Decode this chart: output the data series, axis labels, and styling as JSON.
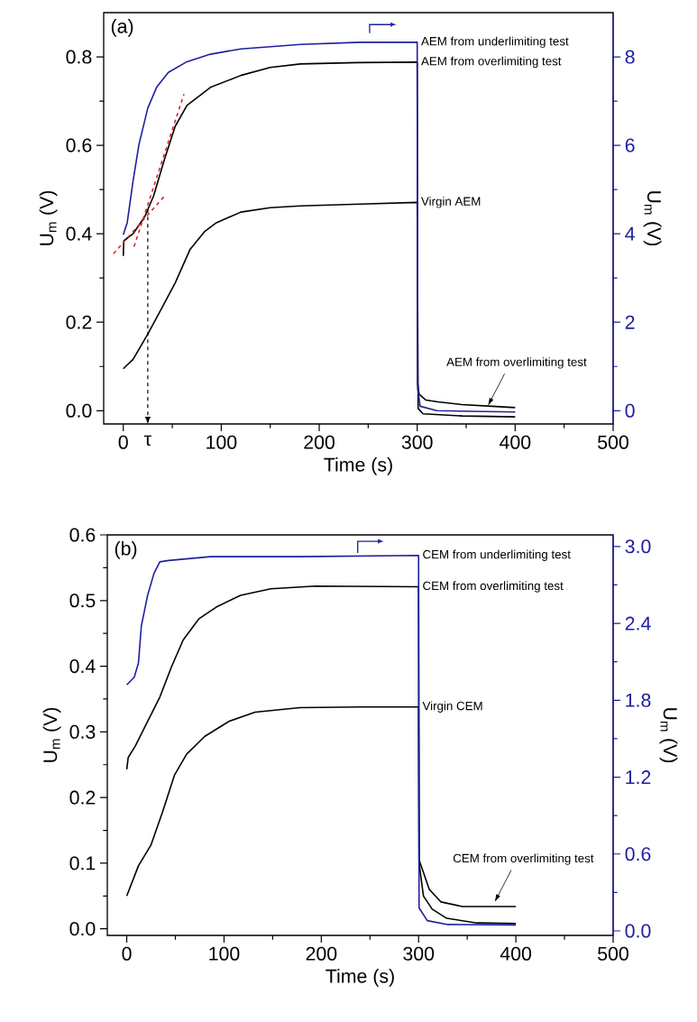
{
  "chart_data": [
    {
      "type": "line",
      "xlabel": "Time (s)",
      "ylabel": "U$_{m}$ (V)",
      "y2label": "U$_{m}$ (V)",
      "annotations": [
        "(a)",
        {
          "text": "AEM from overlimiting test",
          "x": 372,
          "y": 0.01
        }
      ],
      "xlim": [
        -20,
        500
      ],
      "ylim": [
        -0.03,
        0.9
      ],
      "y2lim": [
        -0.3,
        9
      ],
      "xticks": [
        0,
        {
          "value": 50,
          "label": null
        },
        100,
        {
          "value": 150,
          "label": null
        },
        200,
        {
          "value": 250,
          "label": null
        },
        300,
        {
          "value": 350,
          "label": null
        },
        400,
        {
          "value": 450,
          "label": null
        },
        500
      ],
      "yticks": [
        {
          "value": 0,
          "label": "0.0"
        },
        {
          "value": 0.1,
          "label": null
        },
        0.2,
        {
          "value": 0.3,
          "label": null
        },
        0.4,
        {
          "value": 0.5,
          "label": null
        },
        0.6,
        {
          "value": 0.7,
          "label": null
        },
        0.8
      ],
      "y2ticks": [
        0,
        {
          "value": 1,
          "label": null
        },
        2,
        {
          "value": 3,
          "label": null
        },
        4,
        {
          "value": 5,
          "label": null
        },
        6,
        {
          "value": 7,
          "label": null
        },
        8
      ],
      "ref_lines": [
        {
          "axis": "x",
          "value": 25,
          "label": "τ",
          "color": "#000000",
          "line_style": "dashed"
        }
      ],
      "series": [
        {
          "name": "AEM from overlimiting test",
          "color": "#000000",
          "x": [
            0,
            0.5,
            10,
            22,
            31,
            42,
            53,
            65,
            89,
            120,
            150,
            181,
            240,
            300,
            300.5,
            302,
            309,
            321,
            345,
            376,
            400
          ],
          "values": [
            0.35,
            0.384,
            0.4,
            0.439,
            0.486,
            0.568,
            0.643,
            0.69,
            0.731,
            0.758,
            0.776,
            0.784,
            0.787,
            0.788,
            0.06,
            0.037,
            0.024,
            0.02,
            0.014,
            0.01,
            0.007
          ]
        },
        {
          "name": "Virgin AEM",
          "color": "#000000",
          "x": [
            0,
            10,
            25,
            40,
            53,
            68,
            83,
            95,
            120,
            150,
            181,
            242,
            300,
            301,
            306,
            346,
            400
          ],
          "values": [
            0.095,
            0.116,
            0.173,
            0.235,
            0.289,
            0.364,
            0.405,
            0.425,
            0.449,
            0.459,
            0.463,
            0.467,
            0.471,
            0.005,
            -0.007,
            -0.012,
            -0.014
          ]
        },
        {
          "name": "AEM from underlimiting test",
          "color": "#1f1fa0",
          "axis": "y2",
          "x": [
            0,
            4,
            10,
            16,
            25,
            34,
            46,
            65,
            89,
            120,
            181,
            242,
            300,
            300.5,
            303,
            320,
            400
          ],
          "values": [
            3.98,
            4.25,
            5.2,
            6.02,
            6.84,
            7.31,
            7.65,
            7.89,
            8.06,
            8.18,
            8.28,
            8.33,
            8.33,
            0.5,
            0.1,
            0.0,
            -0.03
          ]
        },
        {
          "color": "#d62728",
          "line_style": "dashed",
          "x": [
            -10,
            42
          ],
          "values": [
            0.355,
            0.485
          ]
        },
        {
          "color": "#d62728",
          "line_style": "dashed",
          "x": [
            11,
            62
          ],
          "values": [
            0.371,
            0.716
          ]
        }
      ]
    },
    {
      "type": "line",
      "xlabel": "Time (s)",
      "ylabel": "U$_{m}$ (V)",
      "y2label": "U$_{m}$ (V)",
      "annotations": [
        "(b)",
        {
          "text": "CEM from overlimiting test",
          "x": 378,
          "y": 0.04
        }
      ],
      "xlim": [
        -20,
        500
      ],
      "ylim": [
        -0.01,
        0.6
      ],
      "y2lim": [
        -0.035,
        3.09
      ],
      "xticks": [
        0,
        {
          "value": 50,
          "label": null
        },
        100,
        {
          "value": 150,
          "label": null
        },
        200,
        {
          "value": 250,
          "label": null
        },
        300,
        {
          "value": 350,
          "label": null
        },
        400,
        {
          "value": 450,
          "label": null
        },
        500
      ],
      "yticks": [
        {
          "value": 0,
          "label": "0.0"
        },
        {
          "value": 0.05,
          "label": null
        },
        0.1,
        {
          "value": 0.15,
          "label": null
        },
        0.2,
        {
          "value": 0.25,
          "label": null
        },
        0.3,
        {
          "value": 0.35,
          "label": null
        },
        0.4,
        {
          "value": 0.45,
          "label": null
        },
        0.5,
        {
          "value": 0.55,
          "label": null
        },
        0.6
      ],
      "y2ticks": [
        {
          "value": 0,
          "label": "0.0"
        },
        {
          "value": 0.3,
          "label": null
        },
        0.6,
        {
          "value": 0.9,
          "label": null
        },
        1.2,
        {
          "value": 1.5,
          "label": null
        },
        1.8,
        {
          "value": 2.1,
          "label": null
        },
        2.4,
        {
          "value": 2.7,
          "label": null
        },
        {
          "value": 3,
          "label": "3.0"
        }
      ],
      "series": [
        {
          "name": "CEM from overlimiting test",
          "color": "#000000",
          "x": [
            0,
            1.5,
            9,
            21.5,
            34,
            46,
            58,
            74,
            92,
            117,
            148,
            194,
            300,
            300.5,
            311,
            323,
            345,
            400
          ],
          "values": [
            0.243,
            0.261,
            0.279,
            0.316,
            0.353,
            0.399,
            0.44,
            0.472,
            0.49,
            0.508,
            0.518,
            0.522,
            0.521,
            0.105,
            0.06,
            0.041,
            0.034,
            0.034
          ]
        },
        {
          "name": "Virgin CEM",
          "color": "#000000",
          "x": [
            0,
            12,
            25,
            37,
            49,
            61.5,
            80,
            105,
            132,
            178,
            240,
            300,
            300.5,
            305,
            314,
            329,
            360,
            400
          ],
          "values": [
            0.05,
            0.096,
            0.128,
            0.179,
            0.234,
            0.266,
            0.293,
            0.316,
            0.33,
            0.337,
            0.338,
            0.338,
            0.1,
            0.05,
            0.03,
            0.016,
            0.009,
            0.008
          ]
        },
        {
          "name": "CEM from underlimiting test",
          "color": "#1f1fa0",
          "axis": "y2",
          "x": [
            0,
            7.7,
            12,
            15,
            21.5,
            28,
            34,
            43,
            86,
            178,
            300,
            300.5,
            309,
            330,
            400
          ],
          "values": [
            1.92,
            1.98,
            2.09,
            2.38,
            2.62,
            2.79,
            2.88,
            2.89,
            2.92,
            2.92,
            2.93,
            0.18,
            0.08,
            0.05,
            0.047
          ]
        }
      ]
    }
  ]
}
